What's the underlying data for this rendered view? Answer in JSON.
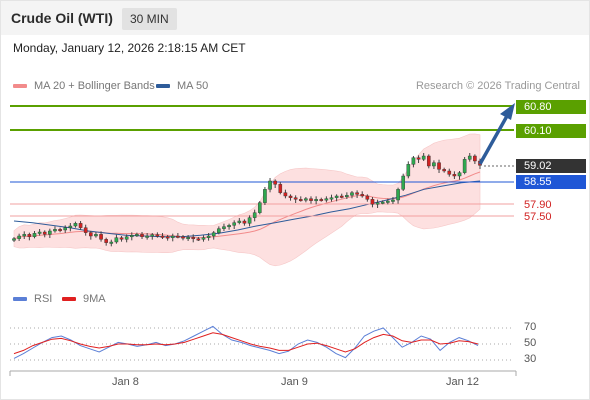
{
  "header": {
    "title": "Crude Oil (WTI)",
    "timeframe": "30 MIN"
  },
  "datetime": "Monday, January 12, 2026 2:18:15 AM CET",
  "legend": {
    "ma20": {
      "label": "MA 20 + Bollinger Bands",
      "color": "#f28b8b"
    },
    "ma50": {
      "label": "MA 50",
      "color": "#2e5c9a"
    },
    "credit": "Research © 2026 Trading Central"
  },
  "rsi_legend": {
    "rsi": {
      "label": "RSI",
      "color": "#5b7fd6"
    },
    "ma9": {
      "label": "9MA",
      "color": "#e02020"
    }
  },
  "chart_data": {
    "type": "candlestick",
    "x_ticks": [
      "Jan 8",
      "Jan 9",
      "Jan 12"
    ],
    "levels": [
      {
        "value": "60.80",
        "kind": "resistance",
        "color": "#5aa000"
      },
      {
        "value": "60.10",
        "kind": "resistance",
        "color": "#5aa000"
      },
      {
        "value": "59.02",
        "kind": "last",
        "color": "#333333"
      },
      {
        "value": "58.55",
        "kind": "pivot",
        "color": "#1f57d6"
      },
      {
        "value": "57.90",
        "kind": "support",
        "color": "#d02020"
      },
      {
        "value": "57.50",
        "kind": "support",
        "color": "#d02020"
      }
    ],
    "candles_close": [
      56.82,
      56.9,
      56.95,
      56.88,
      56.98,
      57.02,
      56.95,
      57.05,
      57.1,
      57.08,
      57.15,
      57.2,
      57.28,
      57.15,
      57.0,
      56.9,
      56.95,
      56.8,
      56.7,
      56.72,
      56.85,
      56.8,
      56.88,
      56.92,
      56.95,
      56.88,
      56.9,
      56.94,
      56.9,
      56.88,
      56.85,
      56.9,
      56.88,
      56.84,
      56.86,
      56.82,
      56.8,
      56.85,
      56.9,
      57.0,
      57.12,
      57.18,
      57.22,
      57.3,
      57.35,
      57.28,
      57.45,
      57.6,
      57.9,
      58.3,
      58.55,
      58.45,
      58.2,
      58.1,
      58.05,
      58.0,
      57.98,
      58.02,
      57.96,
      58.0,
      57.98,
      58.02,
      58.05,
      58.1,
      58.08,
      58.12,
      58.2,
      58.15,
      58.1,
      58.0,
      57.85,
      57.9,
      57.92,
      57.95,
      57.98,
      58.3,
      58.7,
      59.05,
      59.25,
      59.2,
      59.3,
      59.0,
      59.1,
      58.9,
      58.85,
      58.75,
      58.7,
      58.8,
      59.2,
      59.3,
      59.15,
      59.02
    ],
    "ma50_path": [
      57.35,
      57.3,
      57.22,
      57.15,
      57.05,
      56.98,
      56.92,
      56.9,
      56.88,
      56.88,
      56.92,
      56.98,
      57.08,
      57.2,
      57.3,
      57.4,
      57.5,
      57.62,
      57.72,
      57.85,
      57.98,
      58.12,
      58.3,
      58.4,
      58.5,
      58.55
    ],
    "rsi": [
      32,
      38,
      45,
      52,
      58,
      60,
      55,
      48,
      44,
      40,
      46,
      52,
      50,
      47,
      49,
      52,
      48,
      50,
      54,
      60,
      66,
      72,
      62,
      55,
      52,
      48,
      45,
      42,
      38,
      41,
      50,
      55,
      52,
      46,
      38,
      33,
      45,
      60,
      66,
      70,
      58,
      46,
      52,
      60,
      56,
      42,
      52,
      58,
      54,
      48
    ],
    "rsi_ma9": [
      38,
      42,
      48,
      52,
      56,
      57,
      54,
      50,
      47,
      45,
      47,
      50,
      50,
      49,
      49,
      50,
      49,
      50,
      52,
      56,
      60,
      64,
      62,
      58,
      54,
      50,
      47,
      45,
      42,
      42,
      46,
      50,
      51,
      48,
      44,
      40,
      44,
      52,
      58,
      62,
      60,
      54,
      52,
      55,
      55,
      50,
      51,
      54,
      53,
      50
    ],
    "rsi_ticks": [
      "70",
      "50",
      "30"
    ]
  }
}
